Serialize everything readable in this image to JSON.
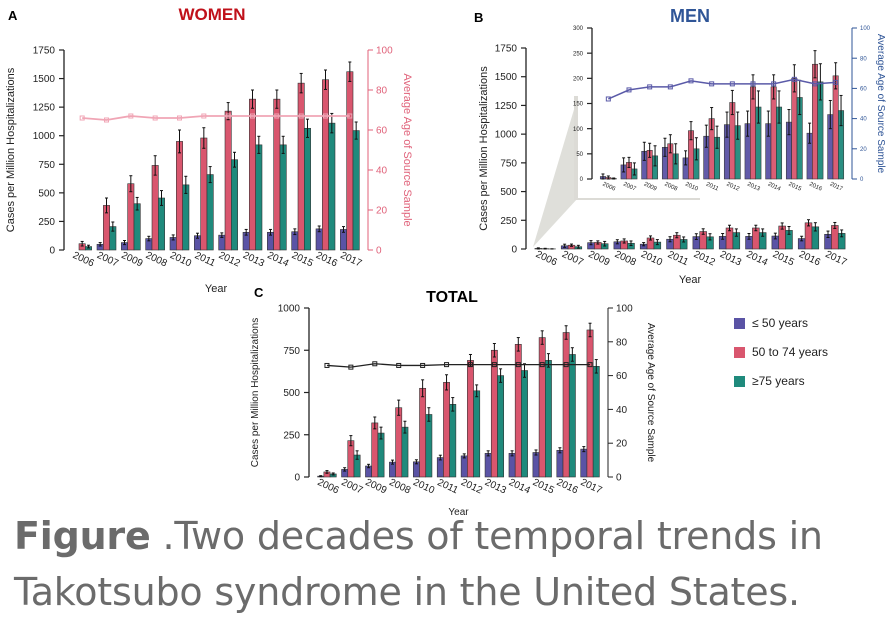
{
  "caption": {
    "bold": "Figure",
    "text": " .Two decades of temporal trends in Takotsubo syndrome in the United States."
  },
  "legend": [
    {
      "label": "≤ 50 years",
      "color": "#5a53a5"
    },
    {
      "label": "50 to 74 years",
      "color": "#d9566e"
    },
    {
      "label": "≥75 years",
      "color": "#1f8a7c"
    }
  ],
  "chart_data": [
    {
      "panel": "A",
      "type": "bar",
      "title": "WOMEN",
      "title_color": "#c0111a",
      "xlabel": "Year",
      "ylabel": "Cases per Million Hospitalizations",
      "y2label": "Average Age of Source Sample",
      "y2_color": "#e0627a",
      "line_color": "#f0a5b5",
      "categories": [
        "2006",
        "2007",
        "2009",
        "2008",
        "2010",
        "2011",
        "2012",
        "2013",
        "2014",
        "2015",
        "2016",
        "2017"
      ],
      "ylim": [
        0,
        1750
      ],
      "yticks": [
        0,
        250,
        500,
        750,
        1000,
        1250,
        1500,
        1750
      ],
      "y2lim": [
        0,
        100
      ],
      "y2ticks": [
        0,
        20,
        40,
        60,
        80,
        100
      ],
      "series": [
        {
          "name": "≤ 50 years",
          "values": [
            0,
            50,
            65,
            100,
            110,
            125,
            130,
            155,
            155,
            160,
            185,
            180
          ],
          "errors": [
            0,
            15,
            18,
            20,
            22,
            22,
            20,
            25,
            25,
            25,
            25,
            25
          ]
        },
        {
          "name": "50 to 74 years",
          "values": [
            55,
            390,
            580,
            740,
            950,
            980,
            1215,
            1320,
            1320,
            1460,
            1490,
            1560
          ],
          "errors": [
            20,
            65,
            70,
            85,
            100,
            90,
            75,
            80,
            80,
            85,
            85,
            85
          ]
        },
        {
          "name": "≥75 years",
          "values": [
            30,
            205,
            405,
            455,
            570,
            660,
            790,
            920,
            920,
            1065,
            1110,
            1045
          ],
          "errors": [
            12,
            40,
            55,
            65,
            75,
            70,
            65,
            75,
            75,
            80,
            85,
            75
          ]
        }
      ],
      "age_line": [
        66,
        65,
        67,
        66,
        66,
        67,
        67,
        67,
        67,
        67,
        67,
        67
      ]
    },
    {
      "panel": "B",
      "type": "bar",
      "title": "MEN",
      "title_color": "#2f5597",
      "xlabel": "Year",
      "ylabel": "Cases per Million Hospitalizations",
      "y2label": "Average Age of Source Sample",
      "y2_color": "#2f5597",
      "line_color": "#5a5aa8",
      "categories": [
        "2006",
        "2007",
        "2009",
        "2008",
        "2010",
        "2011",
        "2012",
        "2013",
        "2014",
        "2015",
        "2016",
        "2017"
      ],
      "ylim": [
        0,
        1750
      ],
      "yticks": [
        0,
        250,
        500,
        750,
        1000,
        1250,
        1500,
        1750
      ],
      "inset_ylim": [
        0,
        300
      ],
      "inset_yticks": [
        0,
        50,
        100,
        150,
        200,
        250,
        300
      ],
      "y2lim": [
        0,
        100
      ],
      "y2ticks": [
        0,
        20,
        40,
        60,
        80,
        100
      ],
      "series": [
        {
          "name": "≤ 50 years",
          "values": [
            5,
            28,
            55,
            63,
            42,
            85,
            108,
            110,
            110,
            113,
            91,
            128
          ],
          "errors": [
            5,
            14,
            18,
            18,
            14,
            22,
            25,
            25,
            25,
            25,
            20,
            28
          ]
        },
        {
          "name": "50 to 74 years",
          "values": [
            3,
            33,
            57,
            70,
            96,
            120,
            152,
            183,
            183,
            200,
            228,
            205
          ],
          "errors": [
            3,
            10,
            14,
            18,
            18,
            22,
            24,
            24,
            24,
            27,
            27,
            26
          ]
        },
        {
          "name": "≥75 years",
          "values": [
            1,
            20,
            46,
            50,
            60,
            83,
            106,
            143,
            143,
            162,
            193,
            136
          ],
          "errors": [
            1,
            12,
            20,
            20,
            22,
            22,
            27,
            32,
            32,
            34,
            36,
            30
          ]
        }
      ],
      "age_line": [
        53,
        59,
        61,
        61,
        65,
        63,
        63,
        63,
        63,
        66,
        63,
        64
      ]
    },
    {
      "panel": "C",
      "type": "bar",
      "title": "TOTAL",
      "title_color": "#000000",
      "xlabel": "Year",
      "ylabel": "Cases per Million Hospitalizations",
      "y2label": "Average Age of Source Sample",
      "y2_color": "#222222",
      "line_color": "#222222",
      "categories": [
        "2006",
        "2007",
        "2009",
        "2008",
        "2010",
        "2011",
        "2012",
        "2013",
        "2014",
        "2015",
        "2016",
        "2017"
      ],
      "ylim": [
        0,
        1000
      ],
      "yticks": [
        0,
        250,
        500,
        750,
        1000
      ],
      "y2lim": [
        0,
        100
      ],
      "y2ticks": [
        0,
        20,
        40,
        60,
        80,
        100
      ],
      "series": [
        {
          "name": "≤ 50 years",
          "values": [
            5,
            45,
            65,
            88,
            90,
            115,
            125,
            140,
            140,
            145,
            158,
            165
          ],
          "errors": [
            3,
            10,
            10,
            12,
            12,
            14,
            12,
            15,
            15,
            15,
            15,
            15
          ]
        },
        {
          "name": "50 to 74 years",
          "values": [
            30,
            215,
            320,
            410,
            525,
            560,
            690,
            750,
            785,
            825,
            855,
            870
          ],
          "errors": [
            8,
            30,
            35,
            45,
            50,
            45,
            35,
            40,
            40,
            40,
            40,
            40
          ]
        },
        {
          "name": "≥75 years",
          "values": [
            18,
            130,
            260,
            295,
            370,
            430,
            510,
            600,
            630,
            690,
            725,
            655
          ],
          "errors": [
            6,
            25,
            35,
            35,
            40,
            40,
            35,
            40,
            40,
            40,
            40,
            40
          ]
        }
      ],
      "age_line": [
        66,
        65,
        67,
        66,
        66,
        66.5,
        66.5,
        66.5,
        66.5,
        66.5,
        66.5,
        66.5
      ]
    }
  ]
}
